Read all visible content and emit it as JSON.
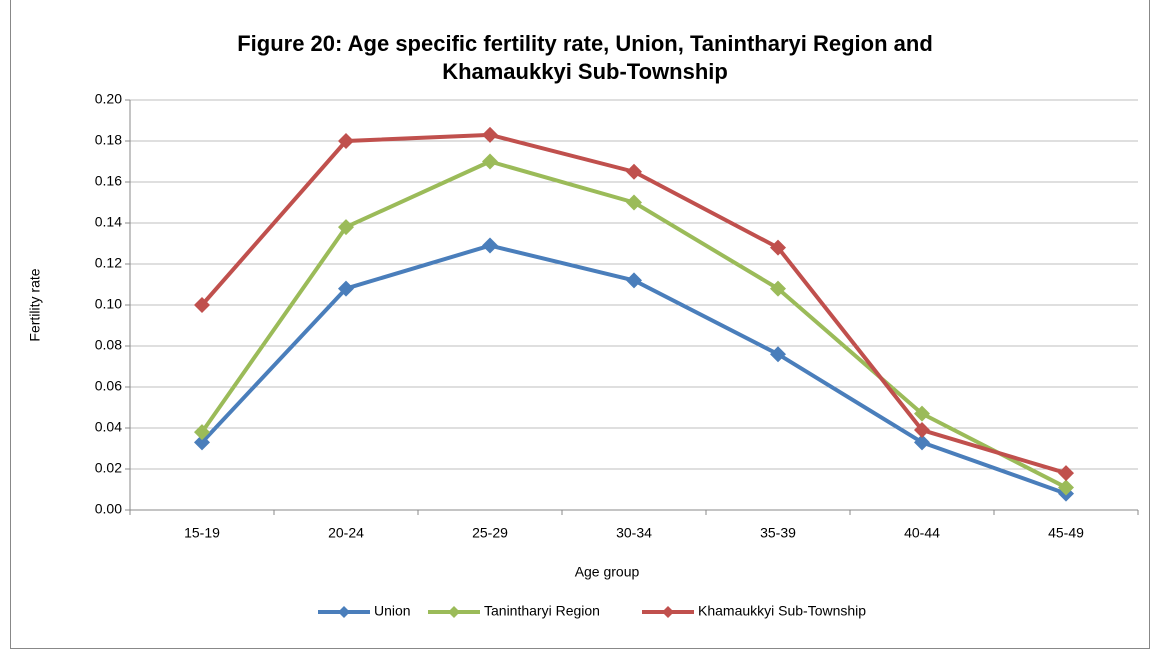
{
  "chart_data": {
    "type": "line",
    "title": "Figure 20: Age specific fertility rate, Union, Tanintharyi Region and Khamaukkyi  Sub-Township",
    "xlabel": "Age group",
    "ylabel": "Fertility rate",
    "categories": [
      "15-19",
      "20-24",
      "25-29",
      "30-34",
      "35-39",
      "40-44",
      "45-49"
    ],
    "series": [
      {
        "name": "Union",
        "color": "#4a7ebb",
        "values": [
          0.033,
          0.108,
          0.129,
          0.112,
          0.076,
          0.033,
          0.008
        ]
      },
      {
        "name": "Tanintharyi Region",
        "color": "#9bbb59",
        "values": [
          0.038,
          0.138,
          0.17,
          0.15,
          0.108,
          0.047,
          0.011
        ]
      },
      {
        "name": "Khamaukkyi Sub-Township",
        "color": "#c0504d",
        "values": [
          0.1,
          0.18,
          0.183,
          0.165,
          0.128,
          0.039,
          0.018
        ]
      }
    ],
    "ylim": [
      0,
      0.2
    ],
    "yticks": [
      {
        "value": 0,
        "label": "0.00"
      },
      0.02,
      0.04,
      0.06,
      0.08,
      {
        "value": 0.1,
        "label": "0.10"
      },
      0.12,
      0.14,
      0.16,
      0.18,
      {
        "value": 0.2,
        "label": "0.20"
      }
    ],
    "grid": true,
    "legend": "bottom"
  }
}
